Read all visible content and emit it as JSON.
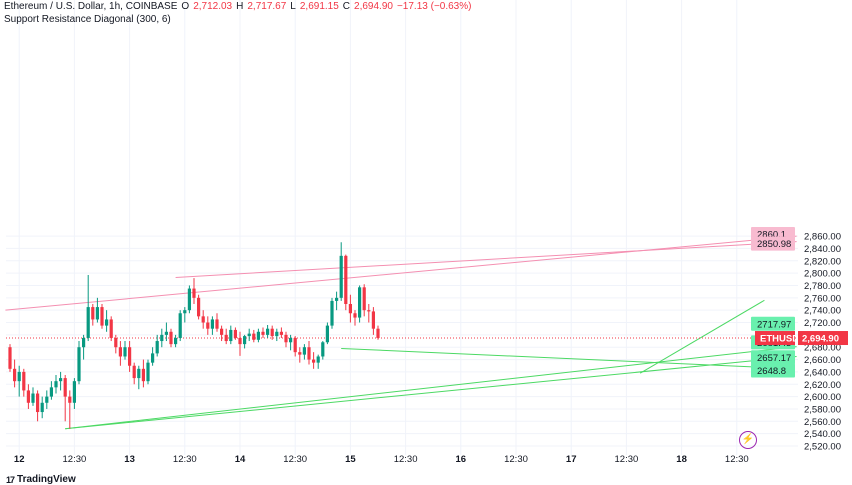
{
  "header": {
    "symbol": "Ethereum / U.S. Dollar, 1h, COINBASE",
    "o_label": "O",
    "o_value": "2,712.03",
    "h_label": "H",
    "h_value": "2,717.67",
    "l_label": "L",
    "l_value": "2,691.15",
    "c_label": "C",
    "c_value": "2,694.90",
    "change": "−17.13 (−0.63%)",
    "indicator": "Support Resistance Diagonal (300, 6)"
  },
  "watermark": "TradingView",
  "colors": {
    "up": "#089981",
    "down": "#f23645",
    "support": "#4cd964",
    "resistance": "#f48fb1",
    "price_line": "#f23645"
  },
  "chart_data": {
    "type": "candlestick",
    "symbol": "ETHUSD",
    "timeframe": "1h",
    "ylim": [
      2510,
      2875
    ],
    "y_ticks": [
      "2,520.00",
      "2,540.00",
      "2,560.00",
      "2,580.00",
      "2,600.00",
      "2,620.00",
      "2,640.00",
      "2,660.00",
      "2,680.00",
      "2,700.00",
      "2,720.00",
      "2,740.00",
      "2,760.00",
      "2,780.00",
      "2,800.00",
      "2,820.00",
      "2,840.00",
      "2,860.00"
    ],
    "x_ticks": [
      "12",
      "12:30",
      "13",
      "12:30",
      "14",
      "12:30",
      "15",
      "12:30",
      "16",
      "12:30",
      "17",
      "12:30",
      "18",
      "12:30"
    ],
    "x_tick_bar_index": [
      2,
      14,
      26,
      38,
      50,
      62,
      74,
      86,
      98,
      110,
      122,
      134,
      146,
      158
    ],
    "last_price_label": "ETHUSD",
    "last_price": "2,694.90",
    "price_labels": [
      {
        "text": "2860.1",
        "value": 2860.1,
        "color": "resistance"
      },
      {
        "text": "2850.98",
        "value": 2850.98,
        "color": "resistance"
      },
      {
        "text": "2717.97",
        "value": 2717.97,
        "color": "support"
      },
      {
        "text": "2681.43",
        "value": 2681.43,
        "color": "support"
      },
      {
        "text": "2657.17",
        "value": 2657.17,
        "color": "support"
      },
      {
        "text": "2648.8",
        "value": 2648.8,
        "color": "support"
      }
    ],
    "trendlines": [
      {
        "color": "resistance",
        "x1": -1,
        "y1": 2740,
        "x2": 171,
        "y2": 2860
      },
      {
        "color": "resistance",
        "x1": 36,
        "y1": 2793,
        "x2": 171,
        "y2": 2851
      },
      {
        "color": "support",
        "x1": 12,
        "y1": 2548,
        "x2": 171,
        "y2": 2665
      },
      {
        "color": "support",
        "x1": 12,
        "y1": 2548,
        "x2": 171,
        "y2": 2681
      },
      {
        "color": "support",
        "x1": 72,
        "y1": 2678,
        "x2": 162,
        "y2": 2648
      },
      {
        "color": "support",
        "x1": 137,
        "y1": 2638,
        "x2": 164,
        "y2": 2756
      }
    ],
    "candles": [
      [
        2680,
        2685,
        2640,
        2645
      ],
      [
        2645,
        2660,
        2615,
        2625
      ],
      [
        2625,
        2650,
        2600,
        2640
      ],
      [
        2640,
        2645,
        2600,
        2610
      ],
      [
        2610,
        2620,
        2580,
        2590
      ],
      [
        2590,
        2615,
        2585,
        2605
      ],
      [
        2605,
        2610,
        2560,
        2575
      ],
      [
        2575,
        2600,
        2565,
        2590
      ],
      [
        2590,
        2610,
        2580,
        2600
      ],
      [
        2600,
        2625,
        2595,
        2615
      ],
      [
        2615,
        2635,
        2605,
        2625
      ],
      [
        2625,
        2640,
        2610,
        2630
      ],
      [
        2630,
        2635,
        2560,
        2600
      ],
      [
        2600,
        2610,
        2548,
        2590
      ],
      [
        2590,
        2630,
        2580,
        2625
      ],
      [
        2625,
        2690,
        2620,
        2680
      ],
      [
        2680,
        2700,
        2660,
        2695
      ],
      [
        2695,
        2797,
        2690,
        2745
      ],
      [
        2745,
        2750,
        2715,
        2725
      ],
      [
        2725,
        2760,
        2720,
        2745
      ],
      [
        2745,
        2750,
        2710,
        2715
      ],
      [
        2715,
        2740,
        2705,
        2725
      ],
      [
        2725,
        2730,
        2690,
        2695
      ],
      [
        2695,
        2700,
        2670,
        2680
      ],
      [
        2680,
        2690,
        2650,
        2665
      ],
      [
        2665,
        2690,
        2660,
        2680
      ],
      [
        2680,
        2690,
        2640,
        2650
      ],
      [
        2650,
        2655,
        2620,
        2630
      ],
      [
        2630,
        2650,
        2612,
        2645
      ],
      [
        2645,
        2660,
        2615,
        2625
      ],
      [
        2625,
        2660,
        2620,
        2655
      ],
      [
        2655,
        2680,
        2650,
        2670
      ],
      [
        2670,
        2700,
        2665,
        2690
      ],
      [
        2690,
        2710,
        2680,
        2700
      ],
      [
        2700,
        2720,
        2690,
        2705
      ],
      [
        2705,
        2710,
        2680,
        2685
      ],
      [
        2685,
        2700,
        2680,
        2695
      ],
      [
        2695,
        2740,
        2690,
        2735
      ],
      [
        2735,
        2745,
        2720,
        2740
      ],
      [
        2740,
        2780,
        2735,
        2775
      ],
      [
        2775,
        2792,
        2750,
        2760
      ],
      [
        2760,
        2765,
        2725,
        2730
      ],
      [
        2730,
        2740,
        2710,
        2720
      ],
      [
        2720,
        2730,
        2700,
        2710
      ],
      [
        2710,
        2730,
        2700,
        2725
      ],
      [
        2725,
        2735,
        2705,
        2710
      ],
      [
        2710,
        2715,
        2690,
        2700
      ],
      [
        2700,
        2710,
        2685,
        2690
      ],
      [
        2690,
        2715,
        2685,
        2708
      ],
      [
        2708,
        2712,
        2692,
        2695
      ],
      [
        2695,
        2705,
        2666,
        2685
      ],
      [
        2685,
        2700,
        2678,
        2698
      ],
      [
        2698,
        2710,
        2690,
        2702
      ],
      [
        2702,
        2708,
        2688,
        2692
      ],
      [
        2692,
        2710,
        2688,
        2705
      ],
      [
        2705,
        2712,
        2695,
        2700
      ],
      [
        2700,
        2716,
        2695,
        2710
      ],
      [
        2710,
        2715,
        2692,
        2698
      ],
      [
        2698,
        2710,
        2690,
        2705
      ],
      [
        2705,
        2712,
        2695,
        2700
      ],
      [
        2700,
        2705,
        2680,
        2688
      ],
      [
        2688,
        2700,
        2675,
        2695
      ],
      [
        2695,
        2698,
        2665,
        2672
      ],
      [
        2672,
        2680,
        2655,
        2668
      ],
      [
        2668,
        2685,
        2660,
        2680
      ],
      [
        2680,
        2690,
        2652,
        2660
      ],
      [
        2660,
        2672,
        2645,
        2655
      ],
      [
        2655,
        2668,
        2645,
        2665
      ],
      [
        2665,
        2690,
        2660,
        2688
      ],
      [
        2688,
        2720,
        2685,
        2715
      ],
      [
        2715,
        2760,
        2710,
        2755
      ],
      [
        2755,
        2770,
        2740,
        2760
      ],
      [
        2760,
        2850,
        2755,
        2828
      ],
      [
        2828,
        2830,
        2740,
        2750
      ],
      [
        2750,
        2765,
        2720,
        2735
      ],
      [
        2735,
        2740,
        2715,
        2728
      ],
      [
        2728,
        2780,
        2720,
        2777
      ],
      [
        2777,
        2782,
        2730,
        2740
      ],
      [
        2740,
        2750,
        2720,
        2738
      ],
      [
        2738,
        2745,
        2700,
        2710
      ],
      [
        2710,
        2715,
        2692,
        2695
      ]
    ]
  }
}
